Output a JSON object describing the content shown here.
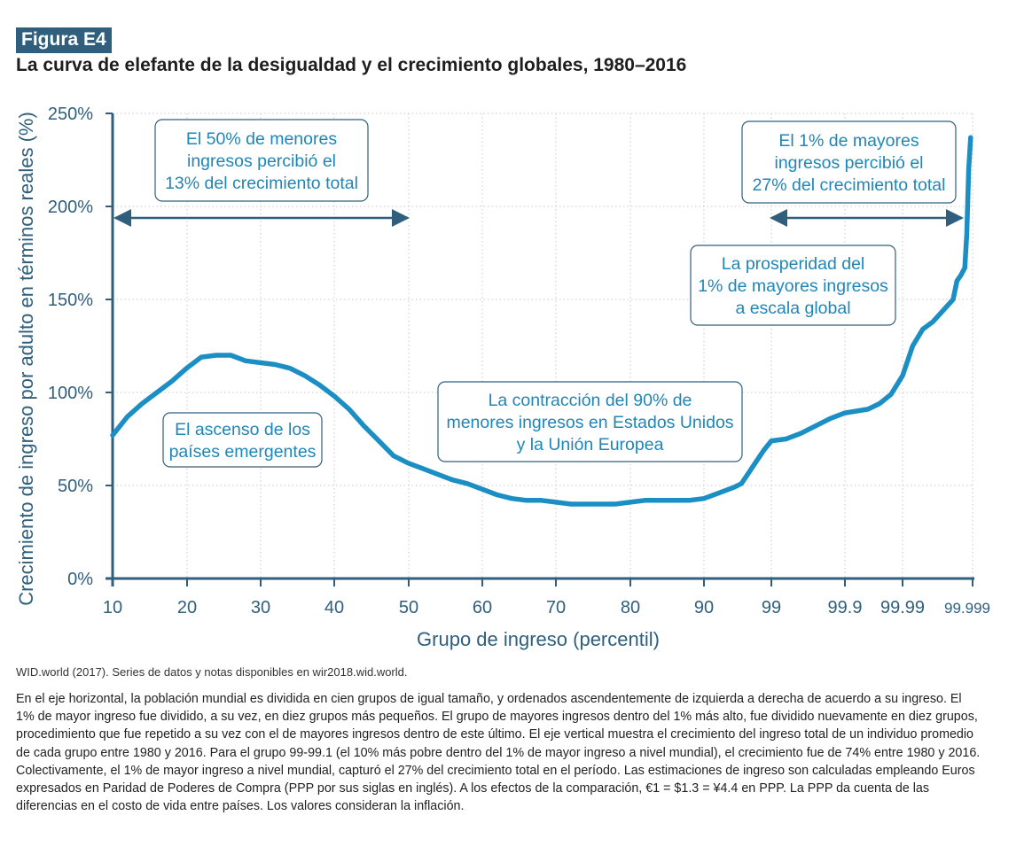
{
  "figure": {
    "tag": "Figura E4",
    "title": "La curva de elefante de la desigualdad y el crecimiento globales, 1980–2016",
    "source": "WID.world (2017). Series de datos y notas disponibles en wir2018.wid.world.",
    "note": "En el eje horizontal, la población mundial es dividida en cien grupos de igual tamaño, y ordenados ascendentemente de izquierda a derecha de acuerdo a su ingreso. El 1% de mayor ingreso fue dividido, a su vez, en diez grupos más pequeños. El grupo de mayores ingresos dentro del 1% más alto, fue dividido nuevamente en diez grupos, procedimiento que fue repetido a su vez con el de mayores ingresos dentro de este último. El eje vertical muestra el crecimiento del ingreso total de un individuo promedio de cada grupo entre 1980 y 2016. Para el grupo 99-99.1 (el 10% más pobre dentro del 1% de mayor ingreso a nivel mundial), el crecimiento fue de 74% entre 1980 y 2016. Colectivamente, el 1% de mayor ingreso a nivel mundial, capturó el 27% del crecimiento total en el período.  Las estimaciones de ingreso son calculadas empleando Euros expresados en Paridad de Poderes de Compra (PPP por sus siglas en inglés). A los efectos de la comparación, €1 = $1.3 = ¥4.4 en PPP. La PPP da cuenta de las diferencias en el costo de vida entre países. Los valores consideran la inflación."
  },
  "colors": {
    "line": "#1b8fc4",
    "axis": "#2f5f7c",
    "text_blue": "#1f86b8",
    "grid": "#c8c8c8",
    "tag_bg": "#2f5f7c"
  },
  "chart_data": {
    "type": "line",
    "xlabel": "Grupo de ingreso (percentil)",
    "ylabel": "Crecimiento de ingreso por adulto en términos reales (%)",
    "y_ticks": [
      "0%",
      "50%",
      "100%",
      "150%",
      "200%",
      "250%"
    ],
    "ylim": [
      0,
      250
    ],
    "x_ticks": [
      "10",
      "20",
      "30",
      "40",
      "50",
      "60",
      "70",
      "80",
      "90",
      "99",
      "99.9",
      "99.99",
      "99.999"
    ],
    "x_scale": "percentile groups, expanding within the top 1%",
    "grid": true,
    "series": [
      {
        "points": [
          [
            10,
            77
          ],
          [
            12,
            87
          ],
          [
            14,
            94
          ],
          [
            16,
            100
          ],
          [
            18,
            106
          ],
          [
            20,
            113
          ],
          [
            22,
            119
          ],
          [
            24,
            120
          ],
          [
            26,
            120
          ],
          [
            28,
            117
          ],
          [
            30,
            116
          ],
          [
            32,
            115
          ],
          [
            34,
            113
          ],
          [
            36,
            109
          ],
          [
            38,
            104
          ],
          [
            40,
            98
          ],
          [
            42,
            91
          ],
          [
            44,
            82
          ],
          [
            46,
            74
          ],
          [
            48,
            66
          ],
          [
            50,
            62
          ],
          [
            52,
            59
          ],
          [
            54,
            56
          ],
          [
            56,
            53
          ],
          [
            58,
            51
          ],
          [
            60,
            48
          ],
          [
            62,
            45
          ],
          [
            64,
            43
          ],
          [
            66,
            42
          ],
          [
            68,
            42
          ],
          [
            70,
            41
          ],
          [
            72,
            40
          ],
          [
            74,
            40
          ],
          [
            76,
            40
          ],
          [
            78,
            40
          ],
          [
            80,
            41
          ],
          [
            82,
            42
          ],
          [
            84,
            42
          ],
          [
            86,
            42
          ],
          [
            88,
            42
          ],
          [
            90,
            43
          ],
          [
            92,
            46
          ],
          [
            94,
            49
          ],
          [
            95,
            51
          ],
          [
            96,
            57
          ],
          [
            97,
            63
          ],
          [
            98,
            69
          ],
          [
            99,
            74
          ],
          [
            99.2,
            75
          ],
          [
            99.4,
            78
          ],
          [
            99.6,
            82
          ],
          [
            99.8,
            86
          ],
          [
            100,
            89
          ],
          [
            100.2,
            90
          ],
          [
            100.4,
            91
          ],
          [
            100.6,
            94
          ],
          [
            100.8,
            99
          ],
          [
            101,
            109
          ],
          [
            101.2,
            125
          ],
          [
            101.4,
            134
          ],
          [
            101.6,
            138
          ],
          [
            101.8,
            144
          ],
          [
            102,
            150
          ],
          [
            102.2,
            160
          ],
          [
            102.4,
            163
          ],
          [
            102.6,
            167
          ],
          [
            102.7,
            185
          ],
          [
            102.8,
            220
          ],
          [
            102.9,
            237
          ]
        ]
      }
    ],
    "annotations": [
      {
        "lines": [
          "El 50% de menores",
          "ingresos percibió el",
          "13% del crecimiento total"
        ]
      },
      {
        "lines": [
          "El 1% de mayores",
          "ingresos percibió el",
          "27% del crecimiento total"
        ]
      },
      {
        "lines": [
          "La prosperidad del",
          "1% de mayores ingresos",
          "a escala global"
        ]
      },
      {
        "lines": [
          "La contracción del 90% de",
          "menores ingresos en Estados Unidos",
          "y la Unión Europea"
        ]
      },
      {
        "lines": [
          "El ascenso de los",
          "países emergentes"
        ]
      }
    ]
  }
}
